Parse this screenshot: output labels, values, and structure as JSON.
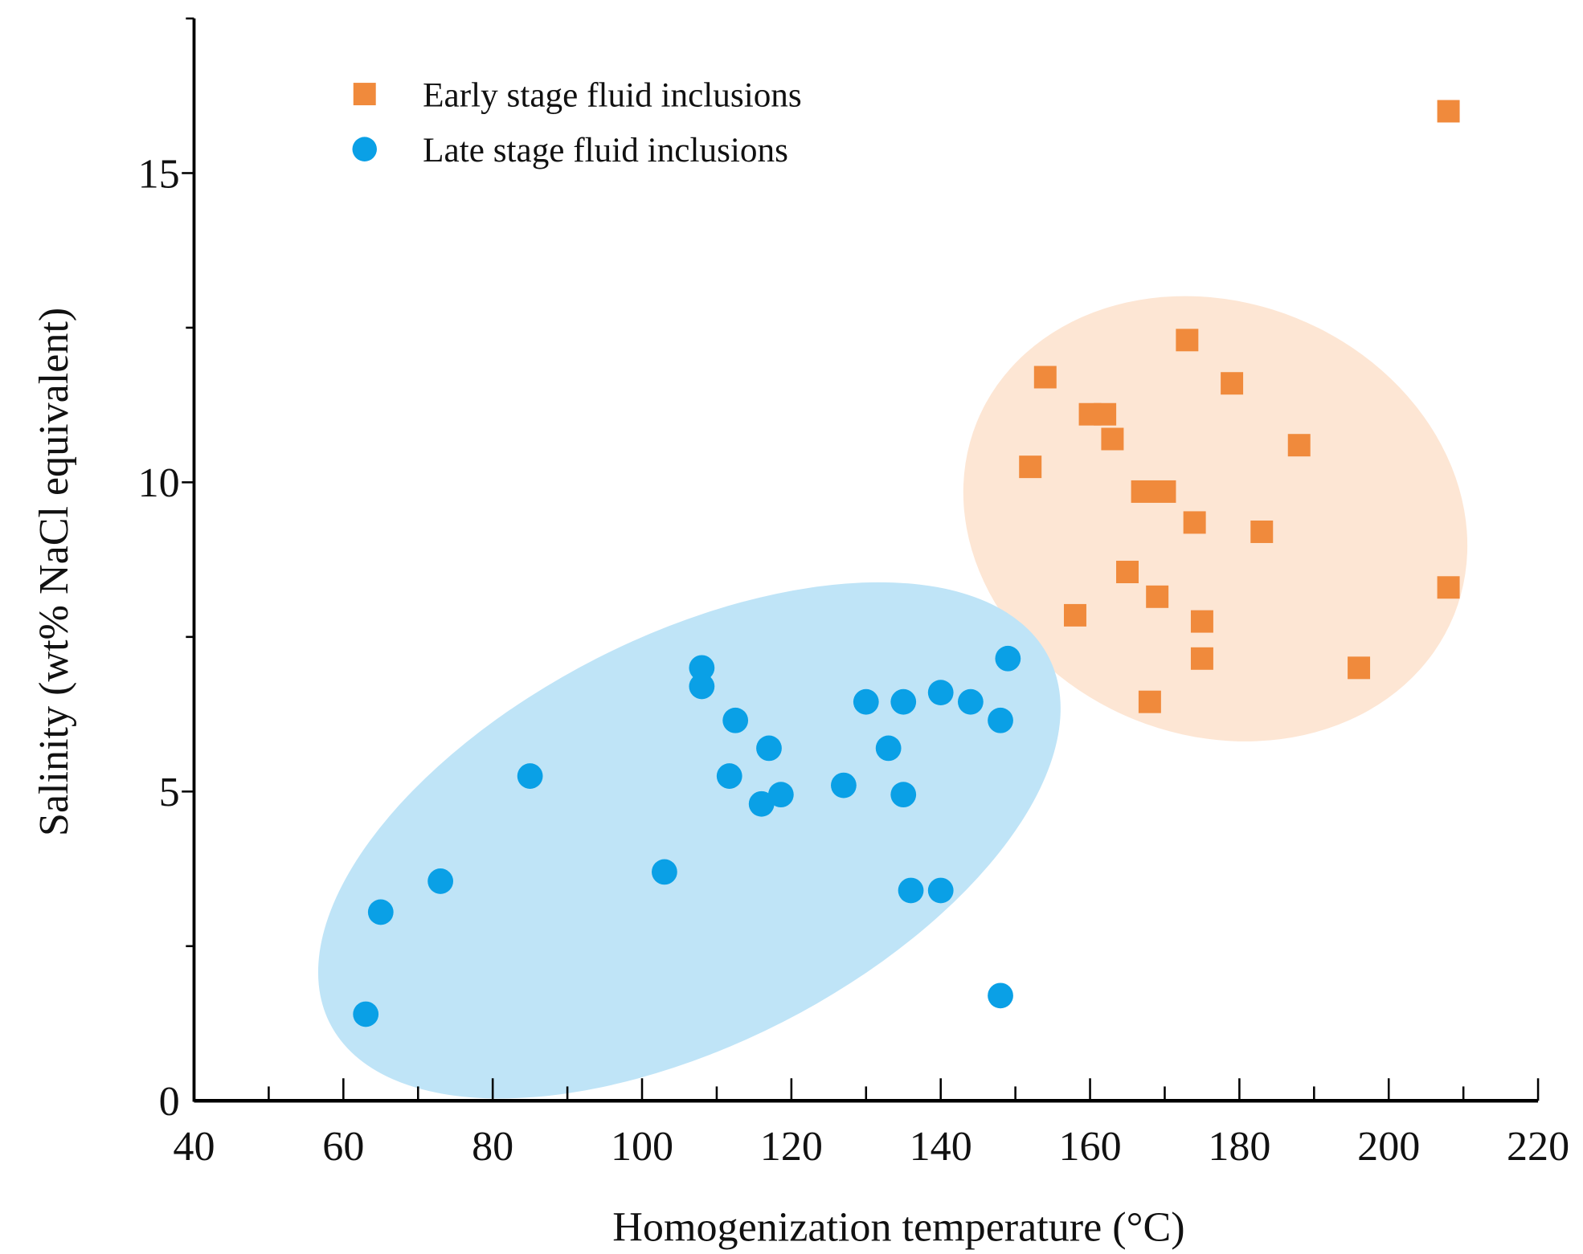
{
  "chart_data": {
    "type": "scatter",
    "title": "",
    "xlabel": "Homogenization temperature (°C)",
    "ylabel": "Salinity (wt% NaCl equivalent)",
    "xlim": [
      40,
      220
    ],
    "ylim": [
      0,
      17.5
    ],
    "xticks": [
      "40",
      "60",
      "80",
      "100",
      "120",
      "140",
      "160",
      "180",
      "200",
      "220"
    ],
    "yticks": [
      "0",
      "5",
      "10",
      "15"
    ],
    "grid": false,
    "legend_position": "top-left",
    "series": [
      {
        "name": "Early stage fluid inclusions",
        "marker": "square",
        "color": "#f08a3c",
        "region_color": "#fde6d4",
        "points": [
          [
            208,
            16.0
          ],
          [
            173,
            12.3
          ],
          [
            154,
            11.7
          ],
          [
            179,
            11.6
          ],
          [
            160,
            11.1
          ],
          [
            162,
            11.1
          ],
          [
            163,
            10.7
          ],
          [
            188,
            10.6
          ],
          [
            152,
            10.25
          ],
          [
            167,
            9.85
          ],
          [
            170,
            9.85
          ],
          [
            174,
            9.35
          ],
          [
            183,
            9.2
          ],
          [
            165,
            8.55
          ],
          [
            208,
            8.3
          ],
          [
            169,
            8.15
          ],
          [
            158,
            7.85
          ],
          [
            175,
            7.75
          ],
          [
            175,
            7.15
          ],
          [
            196,
            7.0
          ],
          [
            168,
            6.45
          ]
        ]
      },
      {
        "name": "Late stage fluid inclusions",
        "marker": "circle",
        "color": "#0aa0e6",
        "region_color": "#bfe4f7",
        "points": [
          [
            63,
            1.4
          ],
          [
            65,
            3.05
          ],
          [
            73,
            3.55
          ],
          [
            85,
            5.25
          ],
          [
            103,
            3.7
          ],
          [
            108,
            7.0
          ],
          [
            108,
            6.7
          ],
          [
            112.5,
            6.15
          ],
          [
            111.7,
            5.25
          ],
          [
            117,
            5.7
          ],
          [
            116,
            4.8
          ],
          [
            118.6,
            4.95
          ],
          [
            127,
            5.1
          ],
          [
            130,
            6.45
          ],
          [
            135,
            6.45
          ],
          [
            133,
            5.7
          ],
          [
            135,
            4.95
          ],
          [
            136,
            3.4
          ],
          [
            140,
            3.4
          ],
          [
            140,
            6.6
          ],
          [
            144,
            6.45
          ],
          [
            148,
            6.15
          ],
          [
            149,
            7.15
          ],
          [
            148,
            1.7
          ]
        ]
      }
    ]
  }
}
